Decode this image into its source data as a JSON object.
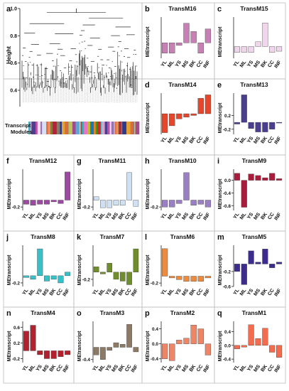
{
  "dendro_panel": {
    "letter": "a",
    "ylabel": "Height",
    "yticks": [
      "1.0",
      "0.8",
      "0.6",
      "0.4"
    ],
    "yrange": [
      0.28,
      1.0
    ],
    "modules_label": [
      "Transcript",
      "Modules"
    ],
    "module_colors": [
      "#3fb3c2",
      "#d9a3c9",
      "#4b3f8f",
      "#c04ea8",
      "#eee0ef",
      "#9a6fb8",
      "#d7dff1",
      "#e9733b",
      "#f28f6a",
      "#6b8c2e",
      "#b5233a",
      "#8b7b65",
      "#2f3a8f",
      "#e3a233",
      "#d96e3a",
      "#7f7f7f",
      "#c2c25a",
      "#a44b8f",
      "#5aa8d6",
      "#d3d3d3",
      "#8c564b",
      "#17becf",
      "#e377c2",
      "#bcbd22",
      "#1f77b4",
      "#ff7f0e",
      "#2ca02c",
      "#d62728"
    ]
  },
  "chart_data": [
    {
      "letter": "b",
      "title": "TransM16",
      "type": "bar",
      "color": "#c77fb5",
      "ylabel": "MEtranscript",
      "categories": [
        "YL",
        "ML",
        "YS",
        "MS",
        "BK",
        "CC",
        "INF"
      ],
      "values": [
        -0.2,
        -0.2,
        -0.05,
        0.38,
        0.22,
        -0.2,
        0.27
      ],
      "ylim": [
        -0.3,
        0.5
      ],
      "ticks": []
    },
    {
      "letter": "c",
      "title": "TransM15",
      "type": "bar",
      "color": "#f0d6ea",
      "ylabel": "MEtranscript",
      "categories": [
        "YL",
        "ML",
        "YS",
        "MS",
        "BK",
        "CC",
        "INF"
      ],
      "values": [
        -0.15,
        -0.15,
        -0.15,
        0.12,
        0.6,
        -0.15,
        -0.12
      ],
      "ylim": [
        -0.3,
        0.75
      ],
      "ticks": []
    },
    {
      "letter": "d",
      "title": "TransM14",
      "type": "bar",
      "color": "#e8462a",
      "ylabel": "MEtranscript",
      "categories": [
        "YL",
        "ML",
        "YS",
        "MS",
        "BK",
        "CC",
        "INF"
      ],
      "values": [
        -0.55,
        -0.35,
        -0.15,
        -0.1,
        -0.05,
        0.45,
        0.55
      ],
      "ylim": [
        -0.6,
        0.6
      ],
      "ticks": []
    },
    {
      "letter": "e",
      "title": "TransM13",
      "type": "bar",
      "color": "#4a3f8c",
      "ylabel": "MEtranscript",
      "categories": [
        "YL",
        "ML",
        "YS",
        "MS",
        "BK",
        "CC",
        "INF"
      ],
      "values": [
        -0.05,
        0.8,
        -0.18,
        -0.28,
        -0.28,
        -0.2,
        -0.02
      ],
      "ylim": [
        -0.35,
        0.85
      ],
      "ticks": [
        -0.2,
        0.2
      ]
    },
    {
      "letter": "f",
      "title": "TransM12",
      "type": "bar",
      "color": "#9b4b9f",
      "ylabel": "MEtranscript",
      "categories": [
        "YL",
        "ML",
        "YS",
        "MS",
        "BK",
        "CC",
        "INF"
      ],
      "values": [
        -0.12,
        -0.15,
        -0.12,
        -0.12,
        -0.05,
        -0.1,
        0.82
      ],
      "ylim": [
        -0.3,
        0.9
      ],
      "ticks": [
        -0.2
      ]
    },
    {
      "letter": "g",
      "title": "TransM11",
      "type": "bar",
      "color": "#cfe0f2",
      "ylabel": "MEtranscript",
      "categories": [
        "YL",
        "ML",
        "YS",
        "MS",
        "BK",
        "CC",
        "INF"
      ],
      "values": [
        0.1,
        -0.22,
        -0.22,
        -0.15,
        -0.15,
        0.8,
        -0.18
      ],
      "ylim": [
        -0.3,
        0.9
      ],
      "ticks": [
        -0.2
      ]
    },
    {
      "letter": "h",
      "title": "TransM10",
      "type": "bar",
      "color": "#9a7fc4",
      "ylabel": "MEtranscript",
      "categories": [
        "YL",
        "ML",
        "YS",
        "MS",
        "BK",
        "CC",
        "INF"
      ],
      "values": [
        -0.2,
        -0.2,
        -0.1,
        0.8,
        -0.15,
        -0.12,
        -0.2
      ],
      "ylim": [
        -0.3,
        0.9
      ],
      "ticks": [
        -0.2
      ]
    },
    {
      "letter": "i",
      "title": "TransM9",
      "type": "bar",
      "color": "#a81c3c",
      "ylabel": "MEtranscript",
      "categories": [
        "YL",
        "ML",
        "YS",
        "MS",
        "BK",
        "CC",
        "INF"
      ],
      "values": [
        0.22,
        -0.85,
        0.2,
        0.15,
        0.08,
        0.22,
        0.05
      ],
      "ylim": [
        -0.95,
        0.35
      ],
      "ticks": [
        0.0,
        -0.4,
        -0.8
      ]
    },
    {
      "letter": "j",
      "title": "TransM8",
      "type": "bar",
      "color": "#38c0c8",
      "ylabel": "MEtranscript",
      "categories": [
        "YL",
        "ML",
        "YS",
        "MS",
        "BK",
        "CC",
        "INF"
      ],
      "values": [
        -0.05,
        -0.1,
        0.75,
        -0.15,
        -0.1,
        -0.2,
        0.1
      ],
      "ylim": [
        -0.3,
        0.85
      ],
      "ticks": [
        -0.2
      ]
    },
    {
      "letter": "k",
      "title": "TransM7",
      "type": "bar",
      "color": "#6f8d2c",
      "ylabel": "MEtranscript",
      "categories": [
        "YL",
        "ML",
        "YS",
        "MS",
        "BK",
        "CC",
        "INF"
      ],
      "values": [
        0.15,
        -0.05,
        0.25,
        -0.2,
        -0.25,
        -0.35,
        0.65
      ],
      "ylim": [
        -0.4,
        0.75
      ],
      "ticks": [
        -0.2
      ]
    },
    {
      "letter": "l",
      "title": "TransM6",
      "type": "bar",
      "color": "#ee8a3c",
      "ylabel": "MEtranscript",
      "categories": [
        "YL",
        "ML",
        "YS",
        "MS",
        "BK",
        "CC",
        "INF"
      ],
      "values": [
        0.8,
        -0.05,
        -0.1,
        -0.15,
        -0.15,
        -0.15,
        -0.05
      ],
      "ylim": [
        -0.3,
        0.9
      ],
      "ticks": [
        -0.2
      ]
    },
    {
      "letter": "m",
      "title": "TransM5",
      "type": "bar",
      "color": "#3d2c8c",
      "ylabel": "MEtranscript",
      "categories": [
        "YL",
        "ML",
        "YS",
        "MS",
        "BK",
        "CC",
        "INF"
      ],
      "values": [
        -0.2,
        -0.55,
        0.35,
        0.05,
        0.4,
        -0.1,
        0.05
      ],
      "ylim": [
        -0.6,
        0.5
      ],
      "ticks": [
        -0.2,
        -0.6
      ]
    },
    {
      "letter": "n",
      "title": "TransM4",
      "type": "bar",
      "color": "#b1222e",
      "ylabel": "MEtranscript",
      "categories": [
        "YL",
        "ML",
        "YS",
        "MS",
        "BK",
        "CC",
        "INF"
      ],
      "values": [
        0.5,
        0.65,
        -0.1,
        -0.2,
        -0.2,
        -0.15,
        -0.1
      ],
      "ylim": [
        -0.3,
        0.75
      ],
      "ticks": [
        0.6,
        0.2,
        -0.2
      ]
    },
    {
      "letter": "o",
      "title": "TransM3",
      "type": "bar",
      "color": "#8c7a67",
      "ylabel": "MEtranscript",
      "categories": [
        "YL",
        "ML",
        "YS",
        "MS",
        "BK",
        "CC",
        "INF"
      ],
      "values": [
        -0.25,
        -0.4,
        -0.1,
        0.15,
        0.1,
        0.75,
        -0.15
      ],
      "ylim": [
        -0.5,
        0.85
      ],
      "ticks": [
        -0.4
      ]
    },
    {
      "letter": "p",
      "title": "TransM2",
      "type": "bar",
      "color": "#f08565",
      "ylabel": "MEtranscript",
      "categories": [
        "YL",
        "ML",
        "YS",
        "MS",
        "BK",
        "CC",
        "INF"
      ],
      "values": [
        -0.4,
        -0.45,
        0.1,
        0.15,
        0.5,
        0.4,
        -0.3
      ],
      "ylim": [
        -0.5,
        0.6
      ],
      "ticks": [
        0.4,
        0.0,
        -0.4
      ]
    },
    {
      "letter": "q",
      "title": "TransM1",
      "type": "bar",
      "color": "#f26c4f",
      "ylabel": "MEtranscript",
      "categories": [
        "YL",
        "ML",
        "YS",
        "MS",
        "BK",
        "CC",
        "INF"
      ],
      "values": [
        -0.1,
        -0.05,
        0.6,
        0.2,
        0.5,
        -0.2,
        -0.35
      ],
      "ylim": [
        -0.5,
        0.7
      ],
      "ticks": [
        0.4,
        0.0,
        -0.4
      ]
    }
  ]
}
